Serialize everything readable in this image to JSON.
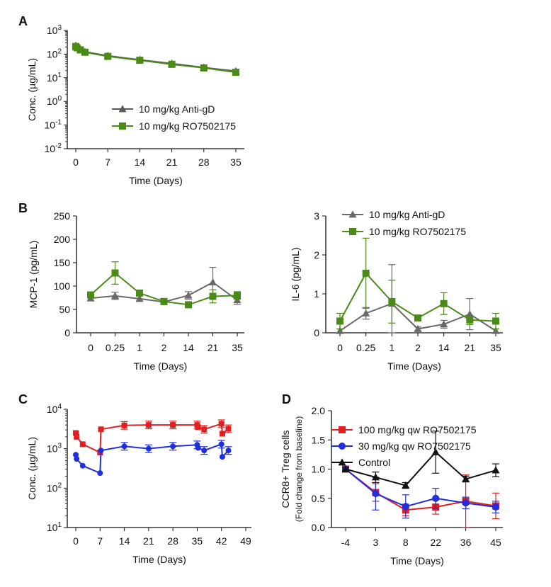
{
  "chart_data": [
    {
      "panel": "A",
      "type": "line",
      "xlabel": "Time (Days)",
      "ylabel": "Conc. (µg/mL)",
      "xticks": [
        "0",
        "7",
        "14",
        "21",
        "28",
        "35"
      ],
      "xlim": [
        -1,
        36
      ],
      "yscale": "log",
      "ylim": [
        0.01,
        1000
      ],
      "yticks": [
        {
          "base": "10",
          "exp": "3"
        },
        {
          "base": "10",
          "exp": "2"
        },
        {
          "base": "10",
          "exp": "1"
        },
        {
          "base": "10",
          "exp": "0"
        },
        {
          "base": "10",
          "exp": "-1"
        },
        {
          "base": "10",
          "exp": "-2"
        }
      ],
      "legend_position": "center",
      "series": [
        {
          "name": "10 mg/kg Anti-gD",
          "color": "#5a5a5a",
          "marker": "triangle",
          "x": [
            0,
            0.25,
            1,
            2,
            7,
            14,
            21,
            28,
            35
          ],
          "y": [
            230,
            200,
            160,
            125,
            85,
            57,
            40,
            27,
            19
          ]
        },
        {
          "name": "10 mg/kg RO7502175",
          "color": "#4a8a16",
          "marker": "square",
          "x": [
            0,
            0.25,
            1,
            2,
            7,
            14,
            21,
            28,
            35
          ],
          "y": [
            210,
            185,
            150,
            120,
            80,
            55,
            37,
            26,
            17
          ]
        }
      ]
    },
    {
      "panel": "B",
      "type": "line",
      "xlabel": "Time (Days)",
      "ylabel": "MCP-1 (pg/mL)",
      "categories": [
        "0",
        "0.25",
        "1",
        "2",
        "14",
        "21",
        "35"
      ],
      "ylim": [
        0,
        250
      ],
      "yticks": [
        0,
        50,
        100,
        150,
        200,
        250
      ],
      "series": [
        {
          "name": "10 mg/kg Anti-gD",
          "color": "#6a6a6a",
          "marker": "triangle",
          "values": [
            74,
            79,
            73,
            66,
            80,
            108,
            70
          ],
          "errors": [
            6,
            8,
            6,
            4,
            8,
            32,
            9
          ]
        },
        {
          "name": "10 mg/kg RO7502175",
          "color": "#4a8a16",
          "marker": "square",
          "values": [
            81,
            128,
            85,
            67,
            60,
            78,
            80
          ],
          "errors": [
            6,
            24,
            6,
            4,
            4,
            14,
            8
          ]
        }
      ]
    },
    {
      "panel": "B",
      "type": "line",
      "xlabel": "Time (Days)",
      "ylabel": "IL-6 (pg/mL)",
      "categories": [
        "0",
        "0.25",
        "1",
        "2",
        "14",
        "21",
        "35"
      ],
      "ylim": [
        0,
        3
      ],
      "yticks": [
        0,
        1,
        2,
        3
      ],
      "legend_position": "top",
      "series": [
        {
          "name": "10 mg/kg Anti-gD",
          "color": "#6a6a6a",
          "marker": "triangle",
          "values": [
            0.05,
            0.5,
            0.75,
            0.1,
            0.22,
            0.48,
            0.05
          ],
          "errors": [
            0.2,
            0.15,
            1.0,
            0.05,
            0.1,
            0.4,
            0.05
          ]
        },
        {
          "name": "10 mg/kg RO7502175",
          "color": "#4a8a16",
          "marker": "square",
          "values": [
            0.3,
            1.53,
            0.8,
            0.38,
            0.75,
            0.33,
            0.3
          ],
          "errors": [
            0.2,
            0.9,
            0.55,
            0.05,
            0.28,
            0.12,
            0.2
          ]
        }
      ]
    },
    {
      "panel": "C",
      "type": "line",
      "xlabel": "Time (Days)",
      "ylabel": "Conc. (µg/mL)",
      "xticks": [
        "0",
        "7",
        "14",
        "21",
        "28",
        "35",
        "42",
        "49"
      ],
      "xlim": [
        0,
        49
      ],
      "yscale": "log",
      "ylim": [
        10,
        10000
      ],
      "yticks": [
        {
          "base": "10",
          "exp": "4"
        },
        {
          "base": "10",
          "exp": "3"
        },
        {
          "base": "10",
          "exp": "2"
        },
        {
          "base": "10",
          "exp": "1"
        }
      ],
      "series": [
        {
          "name": "100 mg/kg qw RO7502175",
          "color": "#e02020",
          "marker": "square",
          "x": [
            0,
            0.25,
            2,
            7,
            7.25,
            14,
            21,
            28,
            35,
            35.25,
            37,
            42,
            42.25,
            44
          ],
          "y": [
            2500,
            2000,
            1300,
            800,
            3100,
            3900,
            4000,
            4000,
            4000,
            3500,
            3100,
            4300,
            2400,
            3200
          ],
          "break_after": [
            2,
            10
          ]
        },
        {
          "name": "30 mg/kg qw RO7502175",
          "color": "#1f2fe0",
          "marker": "circle",
          "x": [
            0,
            0.25,
            2,
            7,
            7.25,
            14,
            21,
            28,
            35,
            35.25,
            37,
            42,
            42.25,
            44
          ],
          "y": [
            700,
            550,
            370,
            240,
            900,
            1150,
            1000,
            1150,
            1250,
            1050,
            900,
            1300,
            620,
            900
          ],
          "break_after": [
            2,
            10
          ]
        }
      ]
    },
    {
      "panel": "D",
      "type": "line",
      "xlabel": "Time (Days)",
      "ylabel": "CCR8+ Treg cells",
      "ylabel2": "(Fold change from baseline)",
      "categories": [
        "-4",
        "3",
        "8",
        "22",
        "36",
        "45"
      ],
      "ylim": [
        0,
        2.0
      ],
      "yticks": [
        "0.0",
        "0.5",
        "1.0",
        "1.5",
        "2.0"
      ],
      "legend_position": "top-left",
      "series": [
        {
          "name": "100 mg/kg qw RO7502175",
          "color": "#e02020",
          "marker": "square",
          "values": [
            1.0,
            0.6,
            0.3,
            0.35,
            0.45,
            0.37
          ],
          "errors": [
            0.03,
            0.15,
            0.1,
            0.12,
            0.45,
            0.22
          ]
        },
        {
          "name": "30 mg/kg qw RO7502175",
          "color": "#1f2fe0",
          "marker": "circle",
          "values": [
            1.0,
            0.58,
            0.36,
            0.5,
            0.42,
            0.35
          ],
          "errors": [
            0.03,
            0.28,
            0.2,
            0.17,
            0.1,
            0.1
          ]
        },
        {
          "name": "Control",
          "color": "#111111",
          "marker": "triangle",
          "values": [
            1.0,
            0.86,
            0.72,
            1.29,
            0.83,
            0.98
          ],
          "errors": [
            0.03,
            0.09,
            0.05,
            0.36,
            0.05,
            0.11
          ]
        }
      ]
    }
  ]
}
